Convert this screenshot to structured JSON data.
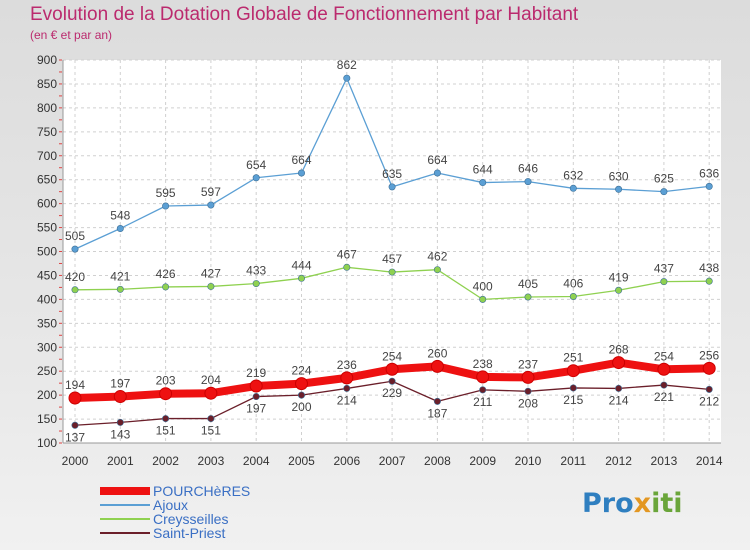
{
  "header": {
    "title": "Evolution de la Dotation Globale de Fonctionnement par Habitant",
    "subtitle": "(en € et par an)"
  },
  "logo": {
    "text": "Proxiti",
    "colors": [
      "#2f7fc0",
      "#e39722",
      "#6aa53a"
    ]
  },
  "chart_data": {
    "type": "line",
    "title": "Evolution de la Dotation Globale de Fonctionnement par Habitant",
    "subtitle": "(en € et par an)",
    "x": [
      "2000",
      "2001",
      "2002",
      "2003",
      "2004",
      "2005",
      "2006",
      "2007",
      "2008",
      "2009",
      "2010",
      "2011",
      "2012",
      "2013",
      "2014"
    ],
    "ylim": [
      100,
      900
    ],
    "yticks": [
      100,
      150,
      200,
      250,
      300,
      350,
      400,
      450,
      500,
      550,
      600,
      650,
      700,
      750,
      800,
      850,
      900
    ],
    "grid": true,
    "legend_position": "bottom-left",
    "series": [
      {
        "name": "POURCHèRES",
        "color": "#ee1111",
        "values": [
          194,
          197,
          203,
          204,
          219,
          224,
          236,
          254,
          260,
          238,
          237,
          251,
          268,
          254,
          256
        ]
      },
      {
        "name": "Ajoux",
        "color": "#5b9fd4",
        "values": [
          505,
          548,
          595,
          597,
          654,
          664,
          862,
          635,
          664,
          644,
          646,
          632,
          630,
          625,
          636
        ]
      },
      {
        "name": "Creysseilles",
        "color": "#8fd150",
        "values": [
          420,
          421,
          426,
          427,
          433,
          444,
          467,
          457,
          462,
          400,
          405,
          406,
          419,
          437,
          438
        ]
      },
      {
        "name": "Saint-Priest",
        "color": "#6b1f2a",
        "values": [
          137,
          143,
          151,
          151,
          197,
          200,
          214,
          229,
          187,
          211,
          208,
          215,
          214,
          221,
          212
        ]
      }
    ]
  }
}
